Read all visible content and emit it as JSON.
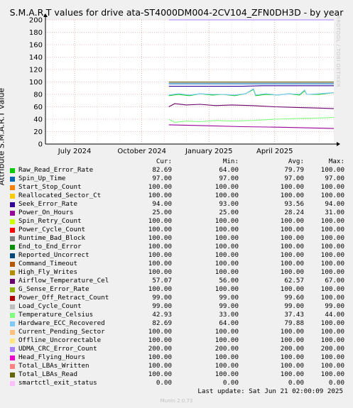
{
  "title": "S.M.A.R.T values for drive ata-ST4000DM004-2CV104_ZFN0DH3D - by year",
  "side_note": "RRDTOOL / TOBI OETIKER",
  "legend_headers": {
    "cur": "Cur:",
    "min": "Min:",
    "avg": "Avg:",
    "max": "Max:"
  },
  "last_update": "Last update: Sat Jun 21 02:00:09 2025",
  "footer": "Munin 2.0.73",
  "legend": [
    {
      "name": "Raw_Read_Error_Rate",
      "color": "#00cc00",
      "cur": "82.69",
      "min": "64.00",
      "avg": "79.79",
      "max": "100.00"
    },
    {
      "name": "Spin_Up_Time",
      "color": "#0066b3",
      "cur": "97.00",
      "min": "97.00",
      "avg": "97.00",
      "max": "97.00"
    },
    {
      "name": "Start_Stop_Count",
      "color": "#ff8000",
      "cur": "100.00",
      "min": "100.00",
      "avg": "100.00",
      "max": "100.00"
    },
    {
      "name": "Reallocated_Sector_Ct",
      "color": "#ffcc00",
      "cur": "100.00",
      "min": "100.00",
      "avg": "100.00",
      "max": "100.00"
    },
    {
      "name": "Seek_Error_Rate",
      "color": "#330099",
      "cur": "94.00",
      "min": "93.00",
      "avg": "93.56",
      "max": "94.00"
    },
    {
      "name": "Power_On_Hours",
      "color": "#990099",
      "cur": "25.00",
      "min": "25.00",
      "avg": "28.24",
      "max": "31.00"
    },
    {
      "name": "Spin_Retry_Count",
      "color": "#ccff00",
      "cur": "100.00",
      "min": "100.00",
      "avg": "100.00",
      "max": "100.00"
    },
    {
      "name": "Power_Cycle_Count",
      "color": "#ff0000",
      "cur": "100.00",
      "min": "100.00",
      "avg": "100.00",
      "max": "100.00"
    },
    {
      "name": "Runtime_Bad_Block",
      "color": "#808080",
      "cur": "100.00",
      "min": "100.00",
      "avg": "100.00",
      "max": "100.00"
    },
    {
      "name": "End_to_End_Error",
      "color": "#008f00",
      "cur": "100.00",
      "min": "100.00",
      "avg": "100.00",
      "max": "100.00"
    },
    {
      "name": "Reported_Uncorrect",
      "color": "#00487d",
      "cur": "100.00",
      "min": "100.00",
      "avg": "100.00",
      "max": "100.00"
    },
    {
      "name": "Command_Timeout",
      "color": "#b35a00",
      "cur": "100.00",
      "min": "100.00",
      "avg": "100.00",
      "max": "100.00"
    },
    {
      "name": "High_Fly_Writes",
      "color": "#b38f00",
      "cur": "100.00",
      "min": "100.00",
      "avg": "100.00",
      "max": "100.00"
    },
    {
      "name": "Airflow_Temperature_Cel",
      "color": "#6b006b",
      "cur": "57.07",
      "min": "56.00",
      "avg": "62.57",
      "max": "67.00"
    },
    {
      "name": "G_Sense_Error_Rate",
      "color": "#8fb300",
      "cur": "100.00",
      "min": "100.00",
      "avg": "100.00",
      "max": "100.00"
    },
    {
      "name": "Power_Off_Retract_Count",
      "color": "#b30000",
      "cur": "99.00",
      "min": "99.00",
      "avg": "99.60",
      "max": "100.00"
    },
    {
      "name": "Load_Cycle_Count",
      "color": "#bebebe",
      "cur": "99.00",
      "min": "99.00",
      "avg": "99.00",
      "max": "99.00"
    },
    {
      "name": "Temperature_Celsius",
      "color": "#80ff80",
      "cur": "42.93",
      "min": "33.00",
      "avg": "37.43",
      "max": "44.00"
    },
    {
      "name": "Hardware_ECC_Recovered",
      "color": "#80c9ff",
      "cur": "82.69",
      "min": "64.00",
      "avg": "79.88",
      "max": "100.00"
    },
    {
      "name": "Current_Pending_Sector",
      "color": "#ffc080",
      "cur": "100.00",
      "min": "100.00",
      "avg": "100.00",
      "max": "100.00"
    },
    {
      "name": "Offline_Uncorrectable",
      "color": "#ffe680",
      "cur": "100.00",
      "min": "100.00",
      "avg": "100.00",
      "max": "100.00"
    },
    {
      "name": "UDMA_CRC_Error_Count",
      "color": "#aa80ff",
      "cur": "200.00",
      "min": "200.00",
      "avg": "200.00",
      "max": "200.00"
    },
    {
      "name": "Head_Flying_Hours",
      "color": "#ee00cc",
      "cur": "100.00",
      "min": "100.00",
      "avg": "100.00",
      "max": "100.00"
    },
    {
      "name": "Total_LBAs_Written",
      "color": "#ff8080",
      "cur": "100.00",
      "min": "100.00",
      "avg": "100.00",
      "max": "100.00"
    },
    {
      "name": "Total_LBAs_Read",
      "color": "#666600",
      "cur": "100.00",
      "min": "100.00",
      "avg": "100.00",
      "max": "100.00"
    },
    {
      "name": "smartctl_exit_status",
      "color": "#ffbfff",
      "cur": "0.00",
      "min": "0.00",
      "avg": "0.00",
      "max": "0.00"
    }
  ],
  "chart_data": {
    "type": "line",
    "title": "S.M.A.R.T values for drive ata-ST4000DM004-2CV104_ZFN0DH3D - by year",
    "ylabel": "Attribute S.M.A.R.T value",
    "xlabel": "",
    "ylim": [
      0,
      200
    ],
    "yticks": [
      0,
      20,
      40,
      60,
      80,
      100,
      120,
      140,
      160,
      180,
      200
    ],
    "x_tick_labels": [
      "July 2024",
      "October 2024",
      "January 2025",
      "April 2025"
    ],
    "x_ticks": [
      "2024-07-01",
      "2024-10-01",
      "2025-01-01",
      "2025-04-01"
    ],
    "x_range": [
      "2024-05-22",
      "2025-06-21"
    ],
    "data_start": "2024-11-07",
    "grid": true,
    "series": [
      {
        "name": "UDMA_CRC_Error_Count",
        "color": "#aa80ff",
        "points": [
          [
            "2024-11-07",
            200
          ],
          [
            "2025-06-21",
            200
          ]
        ]
      },
      {
        "name": "Start_Stop_Count",
        "color": "#ff8000",
        "points": [
          [
            "2024-11-07",
            100
          ],
          [
            "2025-06-21",
            100
          ]
        ]
      },
      {
        "name": "Total_LBAs_Read",
        "color": "#666600",
        "points": [
          [
            "2024-11-07",
            100
          ],
          [
            "2025-06-21",
            100
          ]
        ]
      },
      {
        "name": "Load_Cycle_Count",
        "color": "#bebebe",
        "points": [
          [
            "2024-11-07",
            99
          ],
          [
            "2025-06-21",
            99
          ]
        ]
      },
      {
        "name": "Spin_Up_Time",
        "color": "#0066b3",
        "points": [
          [
            "2024-11-07",
            97
          ],
          [
            "2025-06-21",
            97
          ]
        ]
      },
      {
        "name": "Seek_Error_Rate",
        "color": "#330099",
        "points": [
          [
            "2024-11-07",
            93
          ],
          [
            "2025-02-15",
            93
          ],
          [
            "2025-03-15",
            94
          ],
          [
            "2025-06-21",
            94
          ]
        ]
      },
      {
        "name": "Raw_Read_Error_Rate",
        "color": "#00cc00",
        "points": [
          [
            "2024-11-07",
            78
          ],
          [
            "2024-11-20",
            80
          ],
          [
            "2024-12-05",
            78
          ],
          [
            "2024-12-20",
            81
          ],
          [
            "2025-01-05",
            79
          ],
          [
            "2025-01-20",
            80
          ],
          [
            "2025-02-05",
            78
          ],
          [
            "2025-02-20",
            81
          ],
          [
            "2025-03-03",
            88
          ],
          [
            "2025-03-06",
            78
          ],
          [
            "2025-03-20",
            80
          ],
          [
            "2025-04-05",
            79
          ],
          [
            "2025-04-20",
            81
          ],
          [
            "2025-05-05",
            79
          ],
          [
            "2025-05-12",
            86
          ],
          [
            "2025-05-15",
            80
          ],
          [
            "2025-06-01",
            80
          ],
          [
            "2025-06-21",
            82.69
          ]
        ]
      },
      {
        "name": "Hardware_ECC_Recovered",
        "color": "#80c9ff",
        "points": [
          [
            "2024-11-07",
            79
          ],
          [
            "2024-11-20",
            81
          ],
          [
            "2024-12-05",
            79
          ],
          [
            "2024-12-20",
            81
          ],
          [
            "2025-01-05",
            80
          ],
          [
            "2025-01-20",
            80
          ],
          [
            "2025-02-05",
            79
          ],
          [
            "2025-02-20",
            81
          ],
          [
            "2025-03-03",
            89
          ],
          [
            "2025-03-06",
            79
          ],
          [
            "2025-03-20",
            81
          ],
          [
            "2025-04-05",
            79
          ],
          [
            "2025-04-20",
            81
          ],
          [
            "2025-05-05",
            80
          ],
          [
            "2025-05-12",
            87
          ],
          [
            "2025-05-15",
            80
          ],
          [
            "2025-06-01",
            81
          ],
          [
            "2025-06-21",
            82.69
          ]
        ]
      },
      {
        "name": "Airflow_Temperature_Cel",
        "color": "#6b006b",
        "points": [
          [
            "2024-11-07",
            60
          ],
          [
            "2024-11-15",
            65
          ],
          [
            "2024-12-01",
            63
          ],
          [
            "2024-12-20",
            64
          ],
          [
            "2025-01-10",
            62
          ],
          [
            "2025-02-01",
            63
          ],
          [
            "2025-03-01",
            62
          ],
          [
            "2025-04-01",
            60
          ],
          [
            "2025-05-01",
            59
          ],
          [
            "2025-06-01",
            58
          ],
          [
            "2025-06-21",
            57.07
          ]
        ]
      },
      {
        "name": "Temperature_Celsius",
        "color": "#80ff80",
        "points": [
          [
            "2024-11-07",
            40
          ],
          [
            "2024-11-15",
            35
          ],
          [
            "2024-12-01",
            37
          ],
          [
            "2024-12-20",
            36
          ],
          [
            "2025-01-10",
            38
          ],
          [
            "2025-02-01",
            37
          ],
          [
            "2025-03-01",
            38
          ],
          [
            "2025-04-01",
            40
          ],
          [
            "2025-05-01",
            41
          ],
          [
            "2025-06-01",
            42
          ],
          [
            "2025-06-21",
            42.93
          ]
        ]
      },
      {
        "name": "Power_On_Hours",
        "color": "#990099",
        "points": [
          [
            "2024-11-07",
            31
          ],
          [
            "2024-12-15",
            30
          ],
          [
            "2025-02-15",
            28
          ],
          [
            "2025-04-15",
            27
          ],
          [
            "2025-06-21",
            25
          ]
        ]
      },
      {
        "name": "smartctl_exit_status",
        "color": "#ffbfff",
        "points": [
          [
            "2024-11-07",
            0
          ],
          [
            "2025-06-21",
            0
          ]
        ]
      }
    ]
  }
}
